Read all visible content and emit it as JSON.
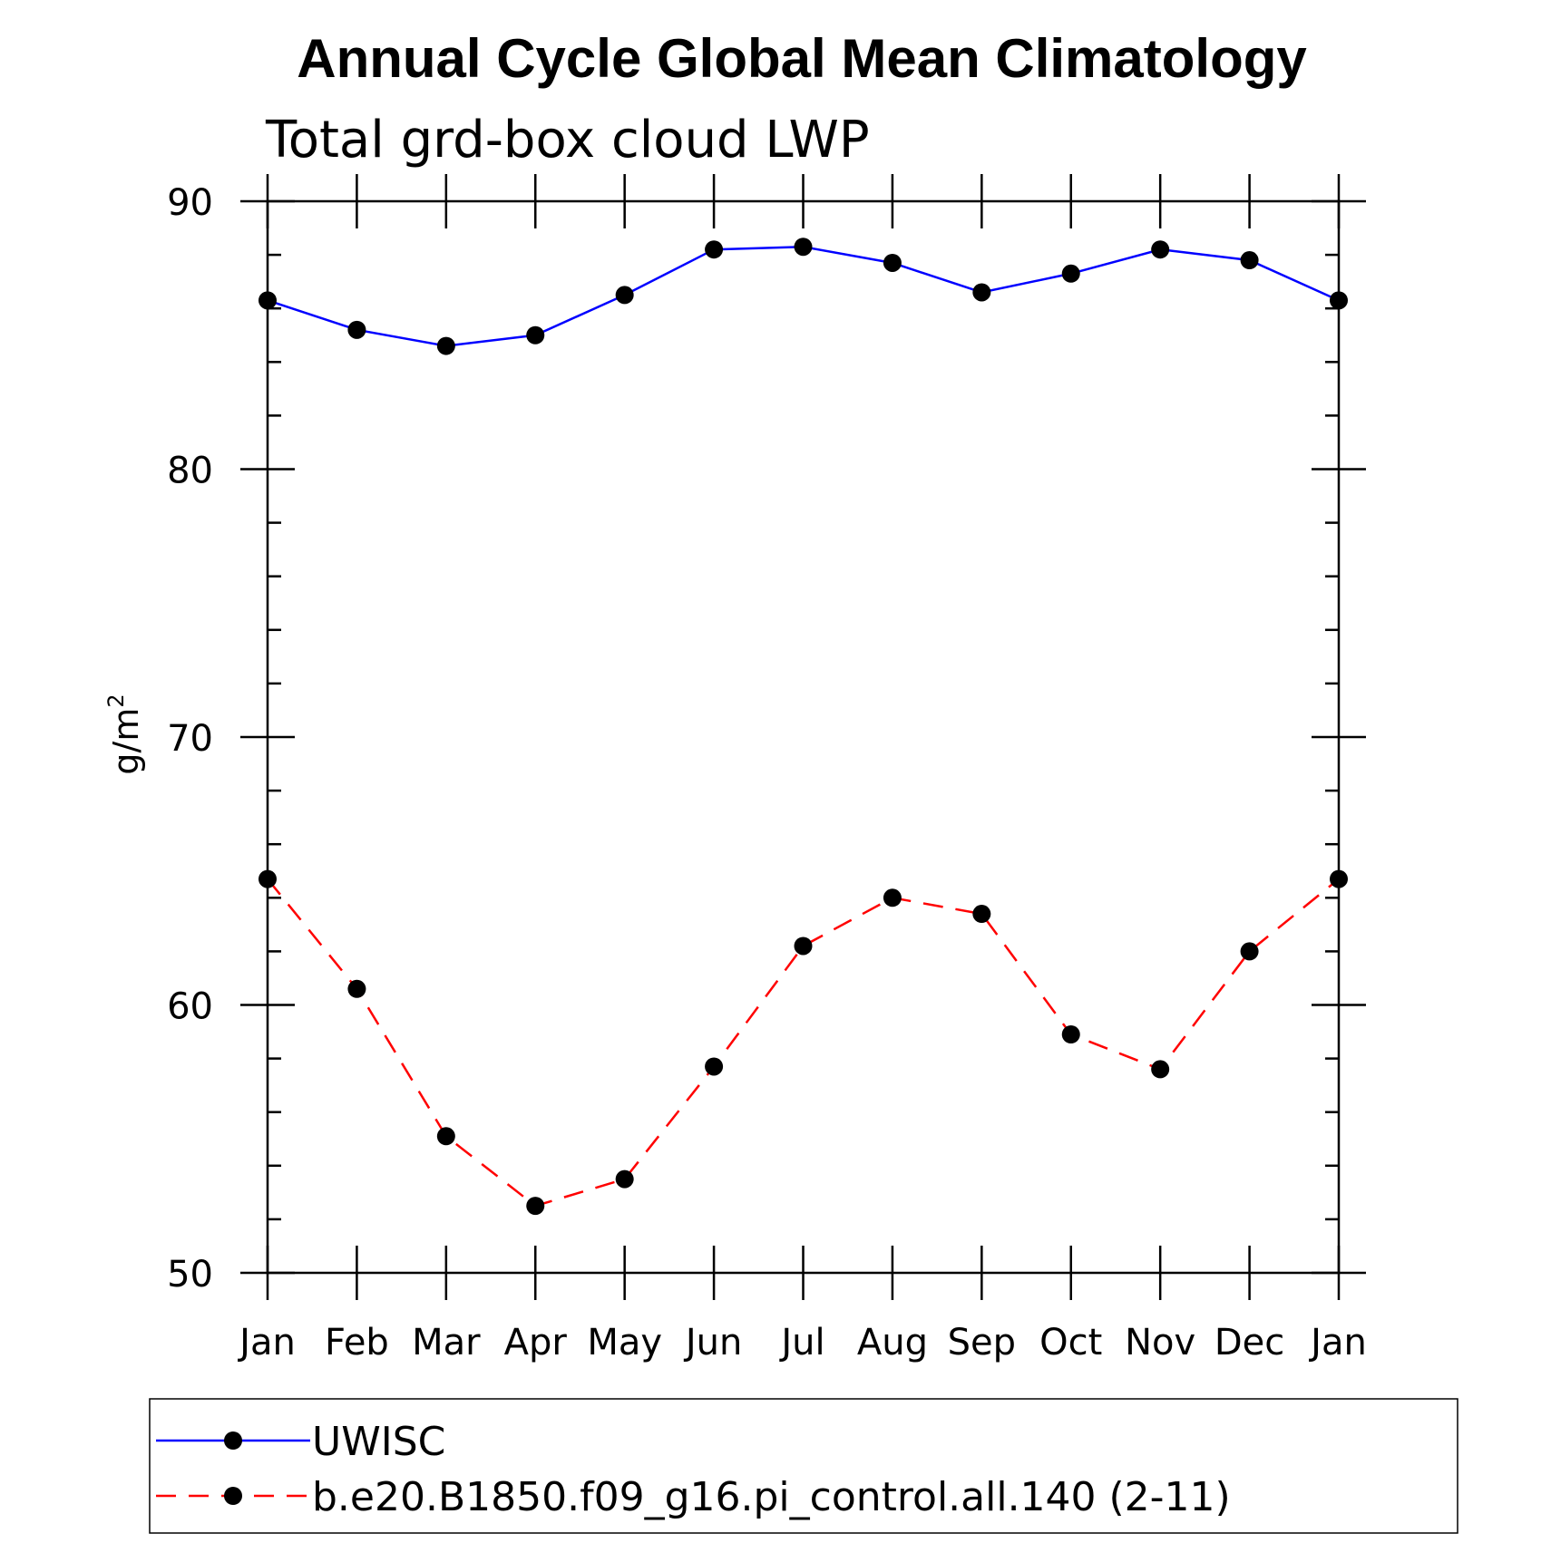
{
  "chart_data": {
    "type": "line",
    "title": "Annual Cycle Global Mean Climatology",
    "subtitle": "Total grd-box cloud LWP",
    "ylabel": "g/m",
    "ylabel_superscript": "2",
    "xlabel": "",
    "categories": [
      "Jan",
      "Feb",
      "Mar",
      "Apr",
      "May",
      "Jun",
      "Jul",
      "Aug",
      "Sep",
      "Oct",
      "Nov",
      "Dec",
      "Jan"
    ],
    "ylim": [
      50,
      90
    ],
    "yticks": [
      50,
      60,
      70,
      80,
      90
    ],
    "y_minor_step": 2,
    "series": [
      {
        "name": "UWISC",
        "color": "#0000ff",
        "line_style": "solid",
        "marker": "filled-circle",
        "marker_color": "#000000",
        "values": [
          86.3,
          85.2,
          84.6,
          85.0,
          86.5,
          88.2,
          88.3,
          87.7,
          86.6,
          87.3,
          88.2,
          87.8,
          86.3
        ]
      },
      {
        "name": "b.e20.B1850.f09_g16.pi_control.all.140 (2-11)",
        "color": "#ff0000",
        "line_style": "dashed",
        "marker": "filled-circle",
        "marker_color": "#000000",
        "values": [
          64.7,
          60.6,
          55.1,
          52.5,
          53.5,
          57.7,
          62.2,
          64.0,
          63.4,
          58.9,
          57.6,
          62.0,
          64.7
        ]
      }
    ],
    "legend_location": "bottom"
  }
}
